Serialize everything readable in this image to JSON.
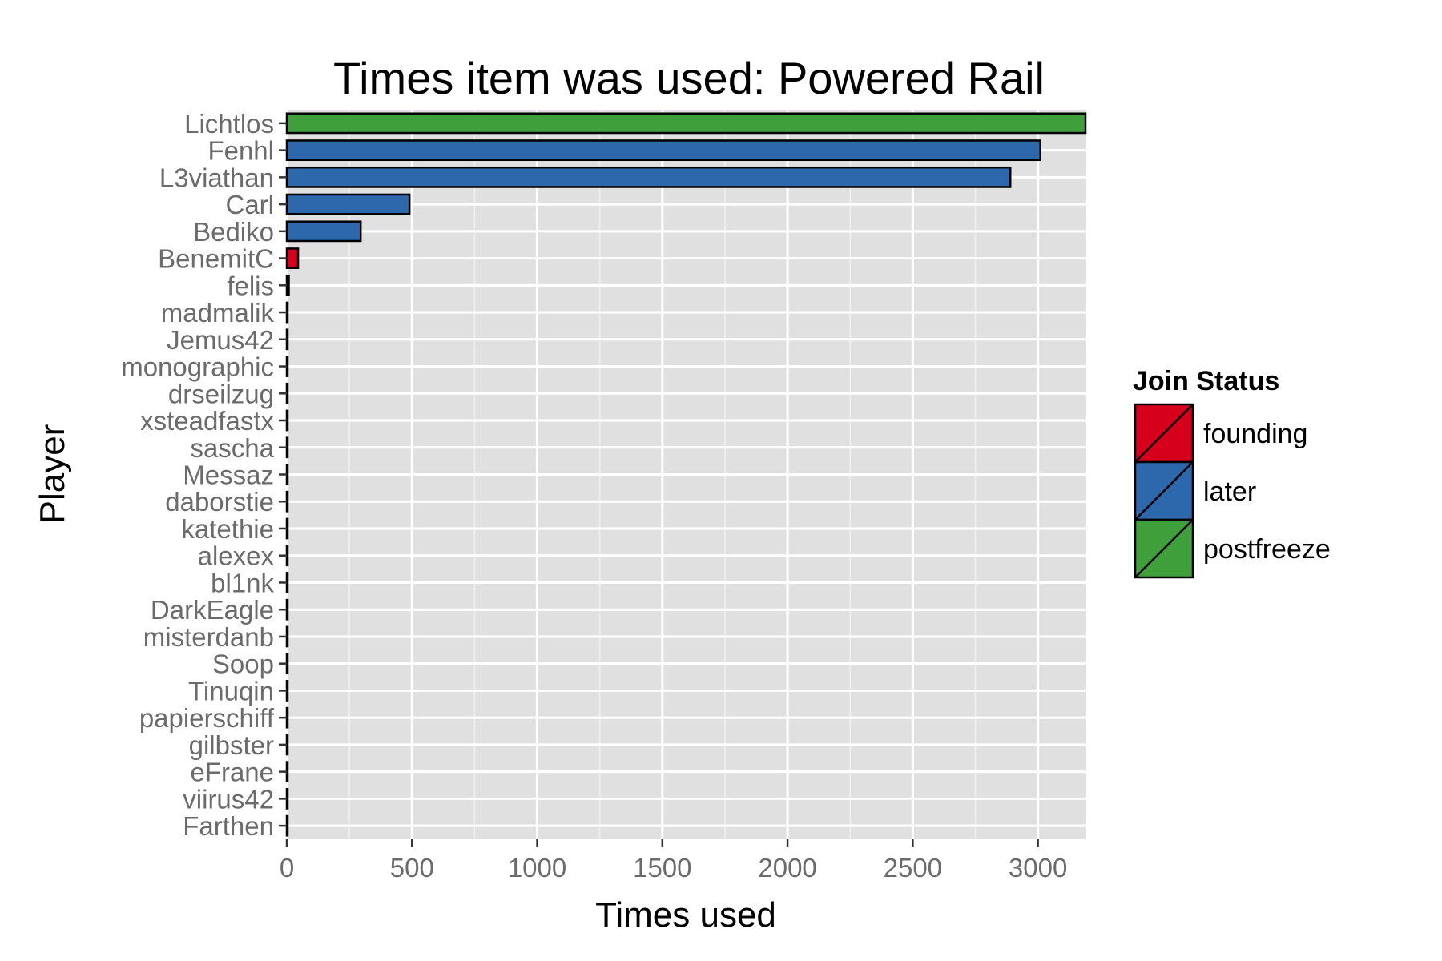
{
  "chart_data": {
    "type": "bar",
    "orientation": "horizontal",
    "title": "Times item was used: Powered Rail",
    "xlabel": "Times used",
    "ylabel": "Player",
    "xlim": [
      0,
      3190
    ],
    "xticks": [
      0,
      500,
      1000,
      1500,
      2000,
      2500,
      3000
    ],
    "grid": true,
    "legend_position": "right",
    "legend_title": "Join Status",
    "legend": [
      {
        "name": "founding",
        "color": "#d7001c"
      },
      {
        "name": "later",
        "color": "#2d68ad"
      },
      {
        "name": "postfreeze",
        "color": "#3f9f3a"
      }
    ],
    "categories": [
      "Lichtlos",
      "Fenhl",
      "L3viathan",
      "Carl",
      "Bediko",
      "BenemitC",
      "felis",
      "madmalik",
      "Jemus42",
      "monographic",
      "drseilzug",
      "xsteadfastx",
      "sascha",
      "Messaz",
      "daborstie",
      "katethie",
      "alexex",
      "bl1nk",
      "DarkEagle",
      "misterdanb",
      "Soop",
      "Tinuqin",
      "papierschiff",
      "gilbster",
      "eFrane",
      "viirus42",
      "Farthen"
    ],
    "values": [
      3190,
      3010,
      2890,
      490,
      295,
      45,
      8,
      3,
      3,
      2,
      2,
      2,
      2,
      2,
      2,
      2,
      2,
      2,
      2,
      2,
      1,
      1,
      1,
      1,
      1,
      1,
      1
    ],
    "status": [
      "postfreeze",
      "later",
      "later",
      "later",
      "later",
      "founding",
      "later",
      "later",
      "later",
      "later",
      "later",
      "later",
      "later",
      "later",
      "later",
      "later",
      "later",
      "later",
      "later",
      "later",
      "later",
      "later",
      "later",
      "later",
      "later",
      "later",
      "later"
    ]
  }
}
